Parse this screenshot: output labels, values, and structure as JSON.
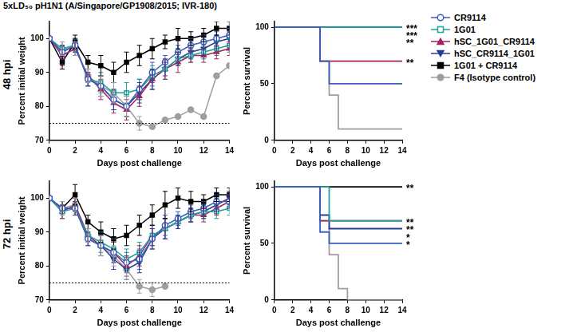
{
  "title": "5xLD₅₀ pH1N1 (A/Singapore/GP1908/2015; IVR-180)",
  "rows": [
    "48 hpi",
    "72 hpi"
  ],
  "chart_data": [
    {
      "type": "line",
      "x_label": "Days post challenge",
      "y_label": "Percent initial weight",
      "x": [
        0,
        1,
        2,
        3,
        4,
        5,
        6,
        7,
        8,
        9,
        10,
        11,
        12,
        13,
        14
      ],
      "xlim": [
        0,
        14
      ],
      "xticks": [
        0,
        2,
        4,
        6,
        8,
        10,
        12,
        14
      ],
      "ylim": [
        70,
        105
      ],
      "yticks": [
        70,
        80,
        90,
        100
      ],
      "grid": false,
      "threshold": 75,
      "legend": "right",
      "series": [
        {
          "name": "CR9114",
          "color": "#3b5fc0",
          "marker": "circle-open",
          "values": [
            100,
            96,
            98,
            88,
            86,
            82,
            80,
            85,
            90,
            93,
            96,
            98,
            99,
            100,
            101
          ],
          "errors": [
            0,
            2,
            2,
            2,
            3,
            3,
            3,
            3,
            3,
            2,
            2,
            2,
            2,
            2,
            2
          ]
        },
        {
          "name": "1G01",
          "color": "#1aa39a",
          "marker": "square-open",
          "values": [
            100,
            97,
            98,
            88,
            87,
            84,
            84,
            85,
            89,
            91,
            94,
            95,
            96,
            97,
            98
          ],
          "errors": [
            0,
            2,
            2,
            2,
            3,
            3,
            3,
            3,
            3,
            3,
            2,
            2,
            2,
            2,
            2
          ]
        },
        {
          "name": "hSC_1G01_CR9114",
          "color": "#a3245c",
          "marker": "triangle",
          "values": [
            100,
            95,
            97,
            89,
            85,
            81,
            79,
            83,
            88,
            91,
            93,
            95,
            95,
            96,
            97
          ],
          "errors": [
            0,
            3,
            2,
            2,
            3,
            3,
            3,
            3,
            3,
            3,
            3,
            2,
            2,
            2,
            2
          ]
        },
        {
          "name": "hSC_CR9114_1G01",
          "color": "#2b3b8f",
          "marker": "triangle-down",
          "values": [
            100,
            96,
            98,
            88,
            86,
            82,
            80,
            84,
            88,
            91,
            94,
            96,
            97,
            99,
            100
          ],
          "errors": [
            0,
            2,
            2,
            2,
            3,
            3,
            3,
            3,
            3,
            2,
            2,
            2,
            2,
            2,
            2
          ]
        },
        {
          "name": "1G01 + CR9114",
          "color": "#000000",
          "marker": "square",
          "values": [
            100,
            93,
            99,
            93,
            92,
            90,
            93,
            95,
            97,
            99,
            100,
            100,
            101,
            103,
            103
          ],
          "errors": [
            0,
            2,
            2,
            2,
            3,
            3,
            3,
            3,
            3,
            2,
            3,
            2,
            2,
            2,
            2
          ]
        },
        {
          "name": "F4 (Isotype control)",
          "color": "#9e9e9e",
          "marker": "circle",
          "values": [
            100,
            97,
            97,
            89,
            86,
            84,
            80,
            75,
            74,
            76,
            77,
            79,
            77,
            89,
            92
          ],
          "errors": [
            0,
            2,
            2,
            2,
            3,
            3,
            3,
            2,
            null,
            null,
            null,
            null,
            null,
            null,
            null
          ]
        }
      ]
    },
    {
      "type": "line",
      "line_style": "step",
      "x_label": "Days post challenge",
      "y_label": "Percent survival",
      "x": [
        0,
        1,
        2,
        3,
        4,
        5,
        6,
        7,
        8,
        9,
        10,
        11,
        12,
        13,
        14
      ],
      "xlim": [
        0,
        14
      ],
      "xticks": [
        0,
        2,
        4,
        6,
        8,
        10,
        12,
        14
      ],
      "ylim": [
        0,
        105
      ],
      "yticks": [
        0,
        50,
        100
      ],
      "grid": false,
      "series": [
        {
          "name": "CR9114",
          "color": "#3b5fc0",
          "marker": "circle-open",
          "values": [
            100,
            100,
            100,
            100,
            100,
            100,
            70,
            50,
            50,
            50,
            50,
            50,
            50,
            50,
            50
          ]
        },
        {
          "name": "1G01",
          "color": "#1aa39a",
          "marker": "square-open",
          "values": [
            100,
            100,
            100,
            100,
            100,
            100,
            100,
            100,
            100,
            100,
            100,
            100,
            100,
            100,
            100
          ],
          "significance": "***"
        },
        {
          "name": "hSC_1G01_CR9114",
          "color": "#a3245c",
          "marker": "triangle",
          "values": [
            100,
            100,
            100,
            100,
            100,
            100,
            70,
            70,
            70,
            70,
            70,
            70,
            70,
            70,
            70
          ],
          "significance": "**"
        },
        {
          "name": "hSC_CR9114_1G01",
          "color": "#2b3b8f",
          "marker": "triangle-down",
          "values": [
            100,
            100,
            100,
            100,
            100,
            100,
            100,
            100,
            100,
            100,
            100,
            100,
            100,
            100,
            100
          ],
          "significance": "***"
        },
        {
          "name": "1G01 + CR9114",
          "color": "#000000",
          "marker": "square",
          "values": [
            100,
            100,
            100,
            100,
            100,
            100,
            100,
            100,
            100,
            100,
            100,
            100,
            100,
            100,
            100
          ],
          "significance": "**"
        },
        {
          "name": "F4 (Isotype control)",
          "color": "#9e9e9e",
          "marker": "circle",
          "values": [
            100,
            100,
            100,
            100,
            100,
            100,
            70,
            40,
            10,
            10,
            10,
            10,
            10,
            10,
            10
          ]
        }
      ]
    },
    {
      "type": "line",
      "x_label": "Days post challenge",
      "y_label": "Percent initial weight",
      "x": [
        0,
        1,
        2,
        3,
        4,
        5,
        6,
        7,
        8,
        9,
        10,
        11,
        12,
        13,
        14
      ],
      "xlim": [
        0,
        14
      ],
      "xticks": [
        0,
        2,
        4,
        6,
        8,
        10,
        12,
        14
      ],
      "ylim": [
        70,
        105
      ],
      "yticks": [
        70,
        80,
        90,
        100
      ],
      "grid": false,
      "threshold": 75,
      "series": [
        {
          "name": "CR9114",
          "color": "#3b5fc0",
          "marker": "circle-open",
          "values": [
            100,
            97,
            97,
            88,
            86,
            84,
            81,
            82,
            88,
            92,
            94,
            96,
            97,
            99,
            99
          ],
          "errors": [
            0,
            2,
            2,
            2,
            3,
            3,
            3,
            3,
            3,
            3,
            2,
            2,
            2,
            2,
            2
          ]
        },
        {
          "name": "1G01",
          "color": "#1aa39a",
          "marker": "square-open",
          "values": [
            100,
            96,
            97,
            89,
            87,
            85,
            82,
            84,
            89,
            91,
            93,
            95,
            96,
            96,
            97
          ],
          "errors": [
            0,
            2,
            2,
            2,
            3,
            3,
            3,
            3,
            3,
            3,
            2,
            2,
            2,
            2,
            2
          ]
        },
        {
          "name": "hSC_1G01_CR9114",
          "color": "#a3245c",
          "marker": "triangle",
          "values": [
            100,
            96,
            98,
            89,
            86,
            84,
            80,
            83,
            89,
            91,
            93,
            95,
            95,
            97,
            99
          ],
          "errors": [
            0,
            2,
            2,
            2,
            3,
            3,
            3,
            3,
            3,
            3,
            2,
            2,
            2,
            2,
            2
          ]
        },
        {
          "name": "hSC_CR9114_1G01",
          "color": "#2b3b8f",
          "marker": "triangle-down",
          "values": [
            100,
            97,
            97,
            88,
            86,
            82,
            79,
            81,
            88,
            91,
            93,
            95,
            96,
            98,
            100
          ],
          "errors": [
            0,
            2,
            2,
            2,
            3,
            3,
            3,
            3,
            3,
            3,
            2,
            2,
            2,
            2,
            2
          ]
        },
        {
          "name": "1G01 + CR9114",
          "color": "#000000",
          "marker": "square",
          "values": [
            100,
            97,
            101,
            93,
            90,
            88,
            89,
            92,
            95,
            98,
            100,
            99,
            99,
            101,
            101
          ],
          "errors": [
            0,
            2,
            3,
            2,
            3,
            3,
            3,
            3,
            3,
            4,
            3,
            3,
            2,
            2,
            2
          ]
        },
        {
          "name": "F4 (Isotype control)",
          "color": "#9e9e9e",
          "marker": "circle",
          "values": [
            100,
            97,
            98,
            89,
            86,
            83,
            79,
            74,
            73,
            74,
            null,
            null,
            null,
            null,
            null
          ],
          "errors": [
            0,
            2,
            2,
            2,
            3,
            3,
            3,
            2,
            2,
            null,
            null,
            null,
            null,
            null,
            null
          ]
        }
      ]
    },
    {
      "type": "line",
      "line_style": "step",
      "x_label": "Days post challenge",
      "y_label": "Percent survival",
      "x": [
        0,
        1,
        2,
        3,
        4,
        5,
        6,
        7,
        8,
        9,
        10,
        11,
        12,
        13,
        14
      ],
      "xlim": [
        0,
        14
      ],
      "xticks": [
        0,
        2,
        4,
        6,
        8,
        10,
        12,
        14
      ],
      "ylim": [
        0,
        105
      ],
      "yticks": [
        0,
        50,
        100
      ],
      "grid": false,
      "series": [
        {
          "name": "CR9114",
          "color": "#3b5fc0",
          "marker": "circle-open",
          "values": [
            100,
            100,
            100,
            100,
            100,
            100,
            60,
            50,
            50,
            50,
            50,
            50,
            50,
            50,
            50
          ],
          "significance": "*"
        },
        {
          "name": "1G01",
          "color": "#1aa39a",
          "marker": "square-open",
          "values": [
            100,
            100,
            100,
            100,
            100,
            100,
            100,
            70,
            70,
            70,
            70,
            70,
            70,
            70,
            70
          ],
          "significance": "**"
        },
        {
          "name": "hSC_1G01_CR9114",
          "color": "#a3245c",
          "marker": "triangle",
          "values": [
            100,
            100,
            100,
            100,
            100,
            100,
            70,
            70,
            70,
            70,
            70,
            70,
            70,
            70,
            70
          ],
          "significance": "**"
        },
        {
          "name": "hSC_CR9114_1G01",
          "color": "#2b3b8f",
          "marker": "triangle-down",
          "values": [
            100,
            100,
            100,
            100,
            100,
            100,
            75,
            63,
            63,
            63,
            63,
            63,
            63,
            63,
            63
          ],
          "significance": "*"
        },
        {
          "name": "1G01 + CR9114",
          "color": "#000000",
          "marker": "square",
          "values": [
            100,
            100,
            100,
            100,
            100,
            100,
            100,
            100,
            100,
            100,
            100,
            100,
            100,
            100,
            100
          ],
          "significance": "**"
        },
        {
          "name": "F4 (Isotype control)",
          "color": "#9e9e9e",
          "marker": "circle",
          "values": [
            100,
            100,
            100,
            100,
            100,
            100,
            70,
            40,
            10,
            0,
            0,
            0,
            0,
            0,
            0
          ]
        }
      ]
    }
  ]
}
